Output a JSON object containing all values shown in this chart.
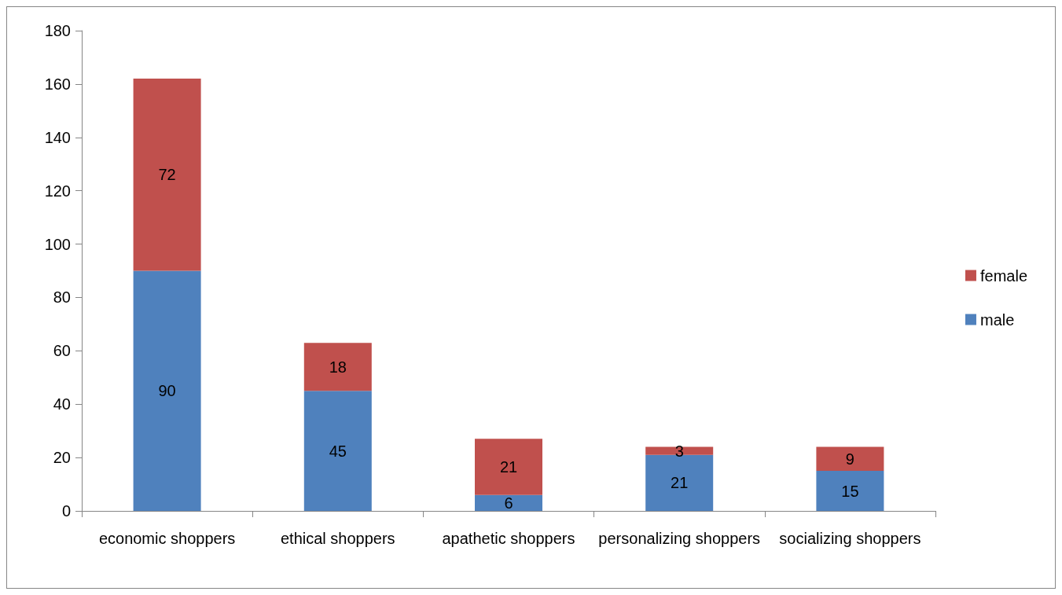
{
  "chart_data": {
    "type": "bar",
    "stacked": true,
    "categories": [
      "economic shoppers",
      "ethical shoppers",
      "apathetic shoppers",
      "personalizing shoppers",
      "socializing shoppers"
    ],
    "series": [
      {
        "name": "male",
        "color": "#4f81bd",
        "values": [
          90,
          45,
          6,
          21,
          15
        ]
      },
      {
        "name": "female",
        "color": "#c0504d",
        "values": [
          72,
          18,
          21,
          3,
          9
        ]
      }
    ],
    "ylim": [
      0,
      180
    ],
    "yticks": [
      0,
      20,
      40,
      60,
      80,
      100,
      120,
      140,
      160,
      180
    ],
    "grid": false,
    "legend": "right",
    "data_labels": true
  }
}
